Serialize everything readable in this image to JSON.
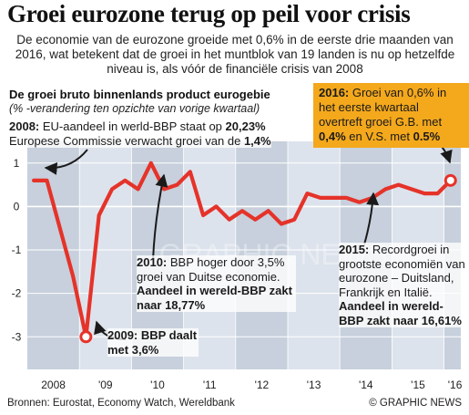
{
  "header": {
    "title": "Groei eurozone terug op peil voor crisis",
    "subtitle": "De economie van de eurozone groeide met 0,6% in de eerste drie maanden van 2016, wat betekent dat de groei in het muntblok van 19 landen is nu op hetzelfde niveau is, als vóór de financiële crisis van 2008"
  },
  "chart_data": {
    "type": "line",
    "title": "De groei bruto binnenlands product eurogebie",
    "subtitle": "(% -verandering ten opzichte van vorige kwartaal)",
    "x": [
      "2008-Q1",
      "2008-Q2",
      "2008-Q3",
      "2008-Q4",
      "2009-Q1",
      "2009-Q2",
      "2009-Q3",
      "2009-Q4",
      "2010-Q1",
      "2010-Q2",
      "2010-Q3",
      "2010-Q4",
      "2011-Q1",
      "2011-Q2",
      "2011-Q3",
      "2011-Q4",
      "2012-Q1",
      "2012-Q2",
      "2012-Q3",
      "2012-Q4",
      "2013-Q1",
      "2013-Q2",
      "2013-Q3",
      "2013-Q4",
      "2014-Q1",
      "2014-Q2",
      "2014-Q3",
      "2014-Q4",
      "2015-Q1",
      "2015-Q2",
      "2015-Q3",
      "2015-Q4",
      "2016-Q1"
    ],
    "series": [
      {
        "values": [
          0.6,
          0.6,
          -0.5,
          -1.6,
          -3.0,
          -0.2,
          0.4,
          0.6,
          0.4,
          1.0,
          0.4,
          0.5,
          0.8,
          -0.2,
          0.0,
          -0.3,
          -0.1,
          -0.3,
          -0.1,
          -0.4,
          -0.3,
          0.3,
          0.2,
          0.2,
          0.2,
          0.1,
          0.2,
          0.4,
          0.5,
          0.4,
          0.3,
          0.3,
          0.6
        ]
      }
    ],
    "ylim": [
      -3.75,
      1.5
    ],
    "yticks": [
      1,
      0,
      -1,
      -2,
      -3
    ],
    "xtick_labels": [
      "2008",
      "'09",
      "'10",
      "'11",
      "'12",
      "'13",
      "'14",
      "'15",
      "'16"
    ],
    "grid": true
  },
  "notes": {
    "n2008": {
      "prefix": "2008:",
      "t1": " EU-aandeel in werld-BBP staat op ",
      "v1": "20,23%",
      "t2": "Europese Commissie verwacht groei van de ",
      "v2": "1,4%"
    },
    "n2016": {
      "prefix": "2016:",
      "t1": " Groei van 0,6% in het eerste kwartaal overtreft groei G.B. met ",
      "v1": "0,4%",
      "t2": " en V.S. met ",
      "v2": "0.5%"
    },
    "n2010": {
      "prefix": "2010:",
      "t1": " BBP hoger door 3,5% groei van Duitse economie. ",
      "bold": "Aandeel in wereld-BBP zakt naar 18,77%"
    },
    "n2009": {
      "prefix": "2009:",
      "t1": " BBP daalt met 3,6%"
    },
    "n2015": {
      "prefix": "2015:",
      "t1": " Recordgroei in grootste economiën van eurozone – Duitsland, Frankrijk en Italië. ",
      "bold": "Aandeel in wereld-BBP zakt naar 16,61%"
    }
  },
  "watermark": "GRAPHIC NEWS",
  "footer": {
    "sources": "Bronnen: Eurostat, Economy Watch,  Wereldbank",
    "credit": "© GRAPHIC NEWS"
  },
  "colors": {
    "line": "#e5332a",
    "plot_bg": "#dde3ec",
    "band": "#c7d0dc",
    "highlight": "#f4a81c",
    "marker": "#e5332a"
  }
}
